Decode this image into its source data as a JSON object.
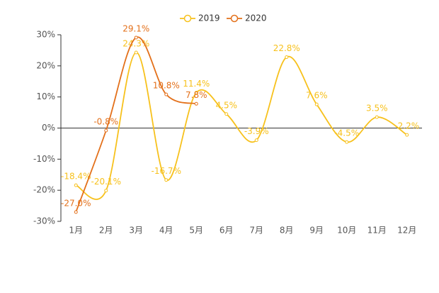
{
  "chart_data": {
    "type": "line",
    "categories": [
      "1月",
      "2月",
      "3月",
      "4月",
      "5月",
      "6月",
      "7月",
      "8月",
      "9月",
      "10月",
      "11月",
      "12月"
    ],
    "series": [
      {
        "name": "2019",
        "color": "#f7c11c",
        "values": [
          -18.4,
          -20.1,
          24.3,
          -16.7,
          11.4,
          4.5,
          -3.9,
          22.8,
          7.6,
          -4.5,
          3.5,
          -2.2
        ],
        "value_labels": [
          "-18.4%",
          "-20.1%",
          "24.3%",
          "-16.7%",
          "11.4%",
          "4.5%",
          "-3.9%",
          "22.8%",
          "7.6%",
          "-4.5%",
          "3.5%",
          "-2.2%"
        ]
      },
      {
        "name": "2020",
        "color": "#e3701a",
        "values": [
          -27.0,
          -0.8,
          29.1,
          10.8,
          7.8,
          null,
          null,
          null,
          null,
          null,
          null,
          null
        ],
        "value_labels": [
          "-27.0%",
          "-0.8%",
          "29.1%",
          "10.8%",
          "7.8%",
          null,
          null,
          null,
          null,
          null,
          null,
          null
        ]
      }
    ],
    "ylim": [
      -30,
      30
    ],
    "yticks": [
      {
        "value": -30,
        "label": "-30%"
      },
      {
        "value": -20,
        "label": "-20%"
      },
      {
        "value": -10,
        "label": "-10%"
      },
      {
        "value": 0,
        "label": "0%"
      },
      {
        "value": 10,
        "label": "10%"
      },
      {
        "value": 20,
        "label": "20%"
      },
      {
        "value": 30,
        "label": "30%"
      }
    ],
    "grid": false,
    "legend": "top",
    "smooth": true
  }
}
